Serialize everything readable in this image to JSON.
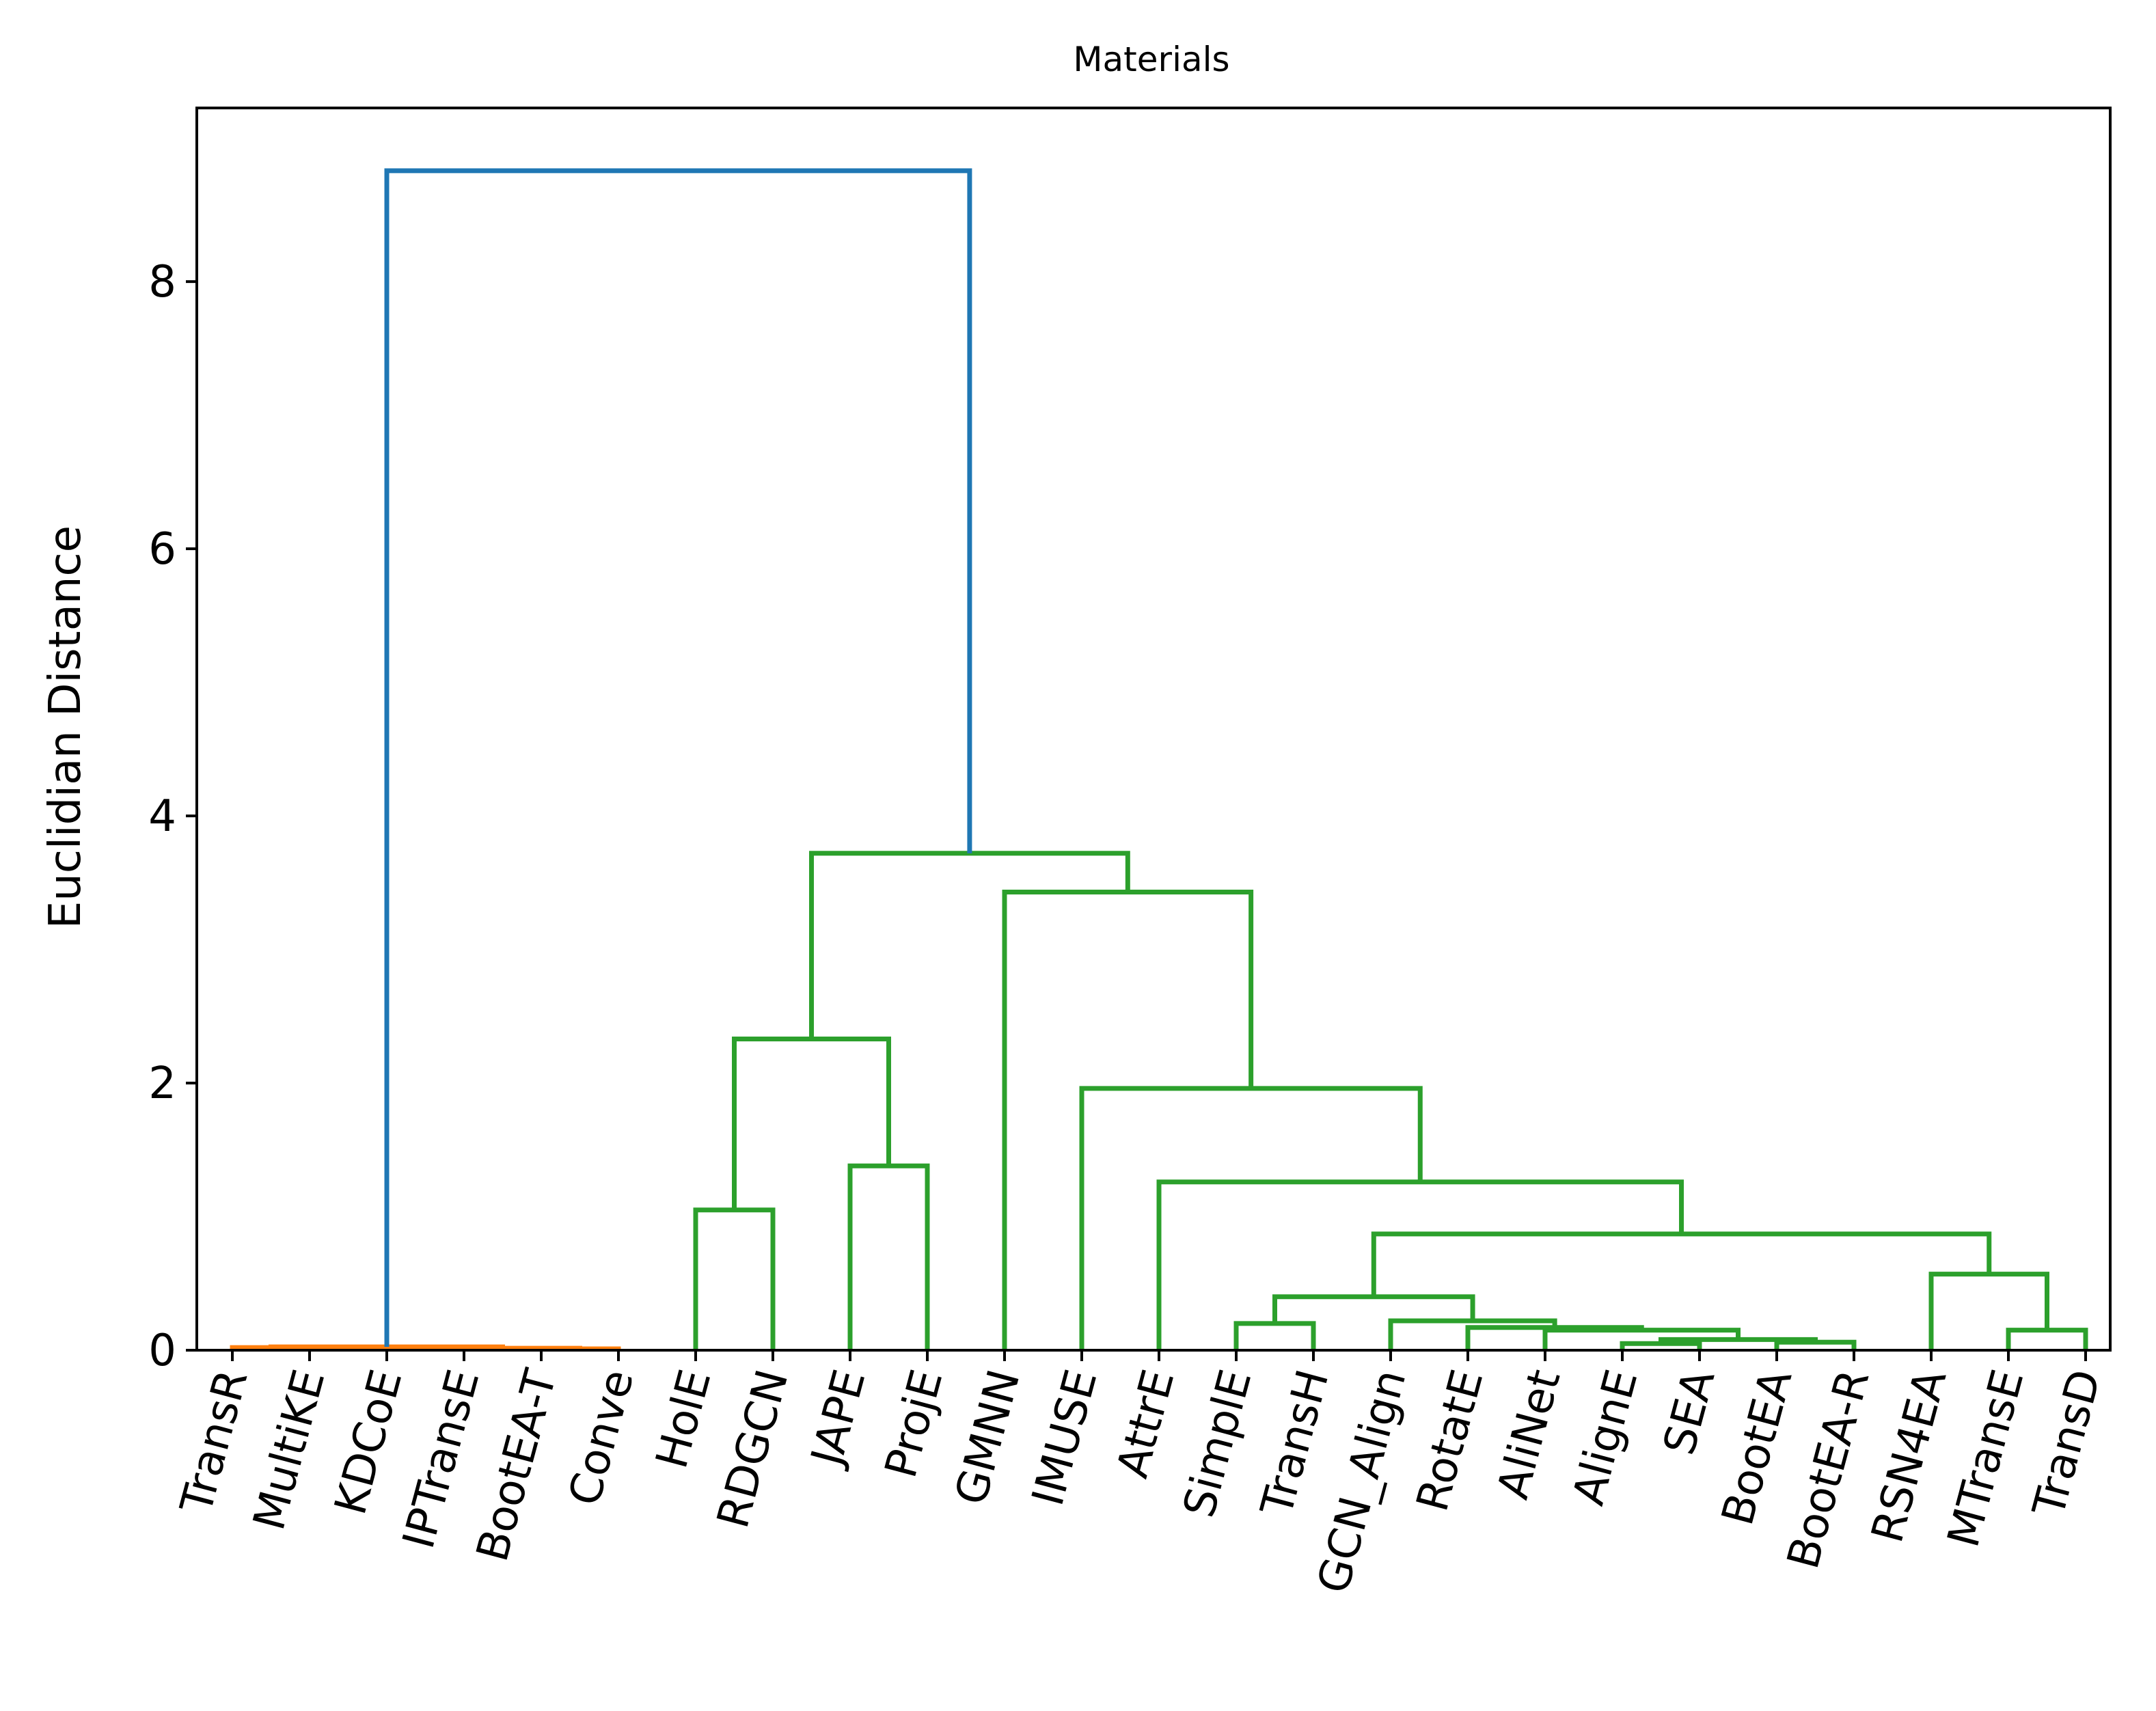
{
  "chart_data": {
    "type": "dendrogram",
    "title": "Materials",
    "ylabel": "Euclidian Distance",
    "xlabel": "",
    "ylim": [
      0,
      9.3
    ],
    "yticks": [
      0,
      2,
      4,
      6,
      8
    ],
    "grid": false,
    "colors": {
      "orange_cluster": "#ff7f0e",
      "green_cluster": "#2ca02c",
      "root": "#1f77b4"
    },
    "leaves": [
      "TransR",
      "MultiKE",
      "KDCoE",
      "IPTransE",
      "BootEA-T",
      "Conve",
      "HolE",
      "RDGCN",
      "JAPE",
      "ProjE",
      "GMNN",
      "IMUSE",
      "AttrE",
      "SimplE",
      "TransH",
      "GCN_Align",
      "RotatE",
      "AliNet",
      "AlignE",
      "SEA",
      "BootEA",
      "BootEA-R",
      "RSN4EA",
      "MTransE",
      "TransD"
    ],
    "merges": [
      {
        "left": "TransR",
        "right": "MultiKE",
        "height": 0.02,
        "color": "orange_cluster"
      },
      {
        "left": "KDCoE",
        "right": "IPTransE",
        "height": 0.01,
        "color": "orange_cluster"
      },
      {
        "left": "BootEA-T",
        "right": "Conve",
        "height": 0.01,
        "color": "orange_cluster"
      },
      {
        "left": "m1",
        "right": "m2",
        "height": 0.015,
        "color": "orange_cluster"
      },
      {
        "left": "m0",
        "right": "m3",
        "height": 0.025,
        "color": "orange_cluster"
      },
      {
        "left": "HolE",
        "right": "RDGCN",
        "height": 1.05,
        "color": "green_cluster"
      },
      {
        "left": "JAPE",
        "right": "ProjE",
        "height": 1.38,
        "color": "green_cluster"
      },
      {
        "left": "m5",
        "right": "m6",
        "height": 2.33,
        "color": "green_cluster"
      },
      {
        "left": "SimplE",
        "right": "TransH",
        "height": 0.2,
        "color": "green_cluster"
      },
      {
        "left": "AlignE",
        "right": "SEA",
        "height": 0.05,
        "color": "green_cluster"
      },
      {
        "left": "BootEA",
        "right": "BootEA-R",
        "height": 0.06,
        "color": "green_cluster"
      },
      {
        "left": "m9",
        "right": "m10",
        "height": 0.08,
        "color": "green_cluster"
      },
      {
        "left": "AliNet",
        "right": "m11",
        "height": 0.15,
        "color": "green_cluster"
      },
      {
        "left": "RotatE",
        "right": "m12",
        "height": 0.17,
        "color": "green_cluster"
      },
      {
        "left": "GCN_Align",
        "right": "m13",
        "height": 0.22,
        "color": "green_cluster"
      },
      {
        "left": "m8",
        "right": "m14",
        "height": 0.4,
        "color": "green_cluster"
      },
      {
        "left": "MTransE",
        "right": "TransD",
        "height": 0.15,
        "color": "green_cluster"
      },
      {
        "left": "RSN4EA",
        "right": "m16",
        "height": 0.57,
        "color": "green_cluster"
      },
      {
        "left": "m15",
        "right": "m17",
        "height": 0.87,
        "color": "green_cluster"
      },
      {
        "left": "AttrE",
        "right": "m18",
        "height": 1.26,
        "color": "green_cluster"
      },
      {
        "left": "IMUSE",
        "right": "m19",
        "height": 1.96,
        "color": "green_cluster"
      },
      {
        "left": "GMNN",
        "right": "m20",
        "height": 3.43,
        "color": "green_cluster"
      },
      {
        "left": "m7",
        "right": "m21",
        "height": 3.72,
        "color": "green_cluster"
      },
      {
        "left": "m4",
        "right": "m22",
        "height": 8.83,
        "color": "root"
      }
    ]
  }
}
